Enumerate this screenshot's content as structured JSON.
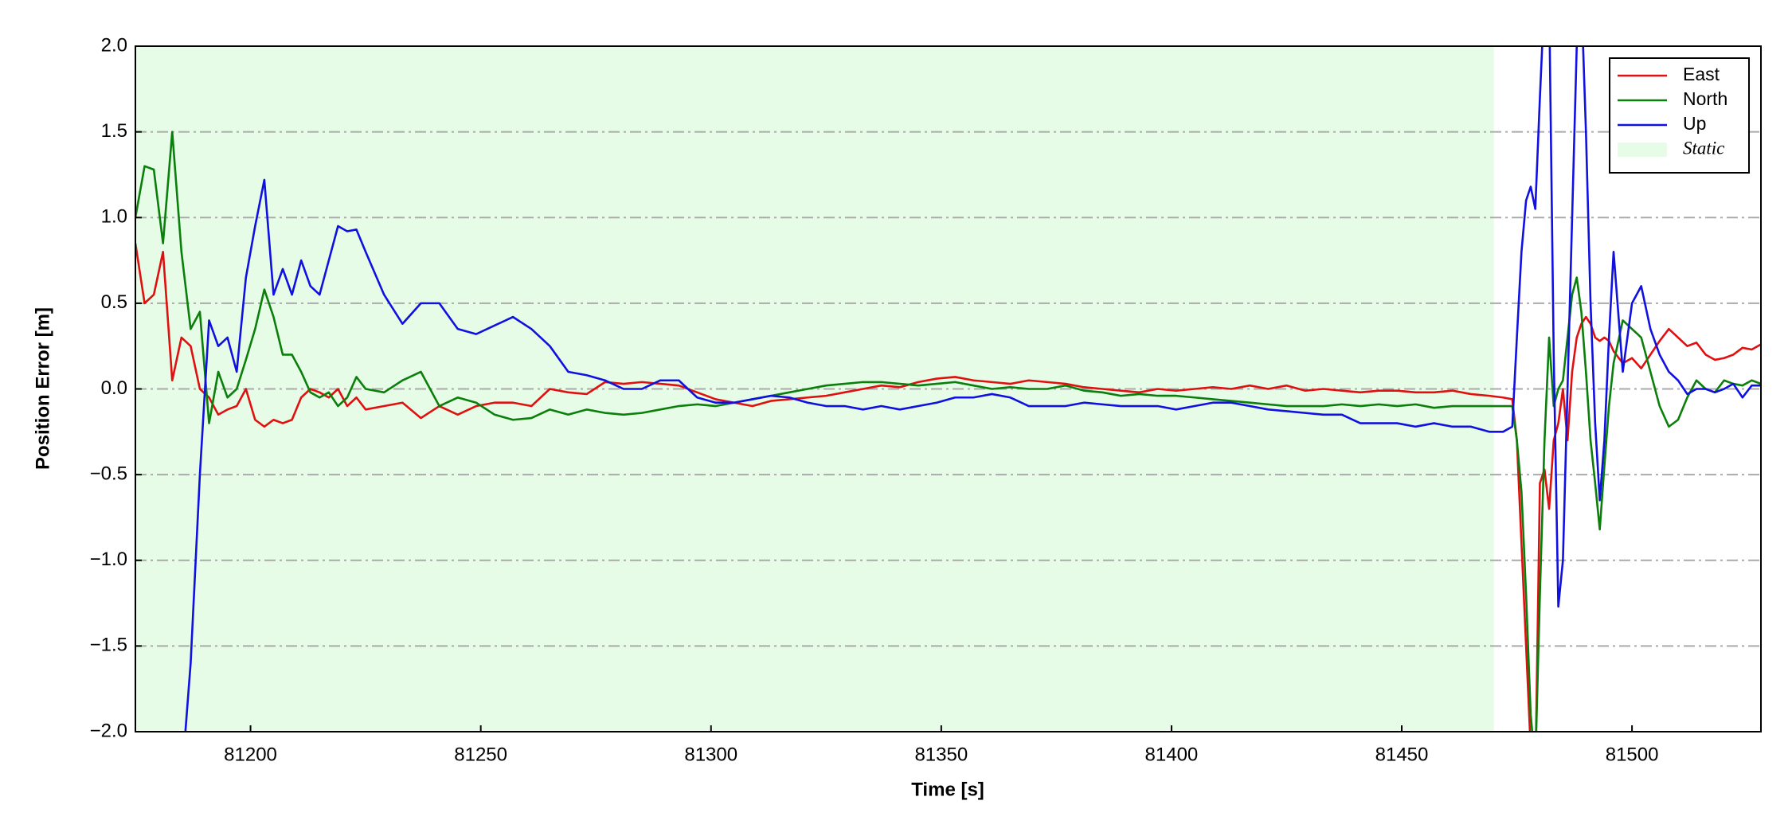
{
  "chart_data": {
    "type": "line",
    "xlabel": "Time [s]",
    "ylabel": "Position Error [m]",
    "xlim": [
      81175,
      81528
    ],
    "ylim": [
      -2.0,
      2.0
    ],
    "xticks": [
      81200,
      81250,
      81300,
      81350,
      81400,
      81450,
      81500
    ],
    "yticks": [
      {
        "value": -2.0,
        "label": "−2.0"
      },
      {
        "value": -1.5,
        "label": "−1.5"
      },
      {
        "value": -1.0,
        "label": "−1.0"
      },
      {
        "value": -0.5,
        "label": "−0.5"
      },
      {
        "value": 0.0,
        "label": "0.0"
      },
      {
        "value": 0.5,
        "label": "0.5"
      },
      {
        "value": 1.0,
        "label": "1.0"
      },
      {
        "value": 1.5,
        "label": "1.5"
      },
      {
        "value": 2.0,
        "label": "2.0"
      }
    ],
    "grid": true,
    "legend": "upper right",
    "spans": [
      {
        "label": "Static",
        "start": 81175,
        "end": 81470,
        "color": "#e6fce6"
      }
    ],
    "x": [
      81175,
      81177,
      81179,
      81181,
      81183,
      81185,
      81187,
      81189,
      81191,
      81193,
      81195,
      81197,
      81199,
      81201,
      81203,
      81205,
      81207,
      81209,
      81211,
      81213,
      81215,
      81217,
      81219,
      81221,
      81223,
      81225,
      81229,
      81233,
      81237,
      81241,
      81245,
      81249,
      81253,
      81257,
      81261,
      81265,
      81269,
      81273,
      81277,
      81281,
      81285,
      81289,
      81293,
      81297,
      81301,
      81305,
      81309,
      81313,
      81317,
      81321,
      81325,
      81329,
      81333,
      81337,
      81341,
      81345,
      81349,
      81353,
      81357,
      81361,
      81365,
      81369,
      81373,
      81377,
      81381,
      81385,
      81389,
      81393,
      81397,
      81401,
      81405,
      81409,
      81413,
      81417,
      81421,
      81425,
      81429,
      81433,
      81437,
      81441,
      81445,
      81449,
      81453,
      81457,
      81461,
      81465,
      81469,
      81472,
      81474,
      81475,
      81476,
      81477,
      81478,
      81479,
      81480,
      81481,
      81482,
      81483,
      81484,
      81485,
      81486,
      81487,
      81488,
      81489,
      81490,
      81491,
      81492,
      81493,
      81494,
      81495,
      81496,
      81498,
      81500,
      81502,
      81504,
      81506,
      81508,
      81510,
      81512,
      81514,
      81516,
      81518,
      81520,
      81522,
      81524,
      81526,
      81528
    ],
    "series": [
      {
        "name": "East",
        "color": "#e01010",
        "values": [
          0.85,
          0.5,
          0.55,
          0.8,
          0.05,
          0.3,
          0.25,
          0.0,
          -0.05,
          -0.15,
          -0.12,
          -0.1,
          0.0,
          -0.18,
          -0.22,
          -0.18,
          -0.2,
          -0.18,
          -0.05,
          0.0,
          -0.02,
          -0.05,
          0.0,
          -0.1,
          -0.05,
          -0.12,
          -0.1,
          -0.08,
          -0.17,
          -0.1,
          -0.15,
          -0.1,
          -0.08,
          -0.08,
          -0.1,
          0.0,
          -0.02,
          -0.03,
          0.04,
          0.03,
          0.04,
          0.03,
          0.02,
          -0.02,
          -0.06,
          -0.08,
          -0.1,
          -0.07,
          -0.06,
          -0.05,
          -0.04,
          -0.02,
          0.0,
          0.02,
          0.01,
          0.04,
          0.06,
          0.07,
          0.05,
          0.04,
          0.03,
          0.05,
          0.04,
          0.03,
          0.01,
          0.0,
          -0.01,
          -0.02,
          0.0,
          -0.01,
          0.0,
          0.01,
          0.0,
          0.02,
          0.0,
          0.02,
          -0.01,
          0.0,
          -0.01,
          -0.02,
          -0.01,
          -0.01,
          -0.02,
          -0.02,
          -0.01,
          -0.03,
          -0.04,
          -0.05,
          -0.06,
          -0.3,
          -0.9,
          -1.5,
          -2.1,
          -2.3,
          -0.55,
          -0.47,
          -0.7,
          -0.3,
          -0.2,
          0.0,
          -0.3,
          0.1,
          0.3,
          0.38,
          0.42,
          0.38,
          0.3,
          0.28,
          0.3,
          0.28,
          0.22,
          0.15,
          0.18,
          0.12,
          0.2,
          0.28,
          0.35,
          0.3,
          0.25,
          0.27,
          0.2,
          0.17,
          0.18,
          0.2,
          0.24,
          0.23,
          0.26
        ]
      },
      {
        "name": "North",
        "color": "#0b7f0b",
        "values": [
          1.0,
          1.3,
          1.28,
          0.85,
          1.5,
          0.8,
          0.35,
          0.45,
          -0.2,
          0.1,
          -0.05,
          0.0,
          0.17,
          0.35,
          0.58,
          0.42,
          0.2,
          0.2,
          0.1,
          -0.02,
          -0.05,
          -0.02,
          -0.1,
          -0.05,
          0.07,
          0.0,
          -0.02,
          0.05,
          0.1,
          -0.1,
          -0.05,
          -0.08,
          -0.15,
          -0.18,
          -0.17,
          -0.12,
          -0.15,
          -0.12,
          -0.14,
          -0.15,
          -0.14,
          -0.12,
          -0.1,
          -0.09,
          -0.1,
          -0.08,
          -0.06,
          -0.04,
          -0.02,
          0.0,
          0.02,
          0.03,
          0.04,
          0.04,
          0.03,
          0.02,
          0.03,
          0.04,
          0.02,
          0.0,
          0.01,
          0.0,
          0.0,
          0.02,
          -0.01,
          -0.02,
          -0.04,
          -0.03,
          -0.04,
          -0.04,
          -0.05,
          -0.06,
          -0.07,
          -0.08,
          -0.09,
          -0.1,
          -0.1,
          -0.1,
          -0.09,
          -0.1,
          -0.09,
          -0.1,
          -0.09,
          -0.11,
          -0.1,
          -0.1,
          -0.1,
          -0.1,
          -0.1,
          -0.3,
          -0.6,
          -1.2,
          -1.9,
          -2.2,
          -1.2,
          -0.3,
          0.3,
          -0.1,
          0.0,
          0.05,
          0.3,
          0.55,
          0.65,
          0.45,
          0.1,
          -0.3,
          -0.55,
          -0.82,
          -0.45,
          -0.1,
          0.15,
          0.4,
          0.35,
          0.3,
          0.1,
          -0.1,
          -0.22,
          -0.18,
          -0.05,
          0.05,
          0.0,
          -0.02,
          0.05,
          0.03,
          0.02,
          0.05,
          0.03
        ]
      },
      {
        "name": "Up",
        "color": "#1010e0",
        "values": [
          null,
          null,
          null,
          null,
          null,
          -2.3,
          -1.6,
          -0.5,
          0.4,
          0.25,
          0.3,
          0.1,
          0.65,
          0.95,
          1.22,
          0.55,
          0.7,
          0.55,
          0.75,
          0.6,
          0.55,
          0.75,
          0.95,
          0.92,
          0.93,
          0.8,
          0.55,
          0.38,
          0.5,
          0.5,
          0.35,
          0.32,
          0.37,
          0.42,
          0.35,
          0.25,
          0.1,
          0.08,
          0.05,
          0.0,
          0.0,
          0.05,
          0.05,
          -0.05,
          -0.08,
          -0.08,
          -0.06,
          -0.04,
          -0.05,
          -0.08,
          -0.1,
          -0.1,
          -0.12,
          -0.1,
          -0.12,
          -0.1,
          -0.08,
          -0.05,
          -0.05,
          -0.03,
          -0.05,
          -0.1,
          -0.1,
          -0.1,
          -0.08,
          -0.09,
          -0.1,
          -0.1,
          -0.1,
          -0.12,
          -0.1,
          -0.08,
          -0.08,
          -0.1,
          -0.12,
          -0.13,
          -0.14,
          -0.15,
          -0.15,
          -0.2,
          -0.2,
          -0.2,
          -0.22,
          -0.2,
          -0.22,
          -0.22,
          -0.25,
          -0.25,
          -0.22,
          0.3,
          0.8,
          1.1,
          1.18,
          1.05,
          1.7,
          2.3,
          2.3,
          0.2,
          -1.27,
          -1.0,
          0.0,
          1.0,
          2.0,
          2.3,
          1.5,
          0.5,
          -0.2,
          -0.65,
          -0.3,
          0.3,
          0.8,
          0.1,
          0.5,
          0.6,
          0.35,
          0.2,
          0.1,
          0.05,
          -0.03,
          0.0,
          0.0,
          -0.02,
          0.0,
          0.03,
          -0.05,
          0.02,
          0.02
        ]
      }
    ]
  }
}
